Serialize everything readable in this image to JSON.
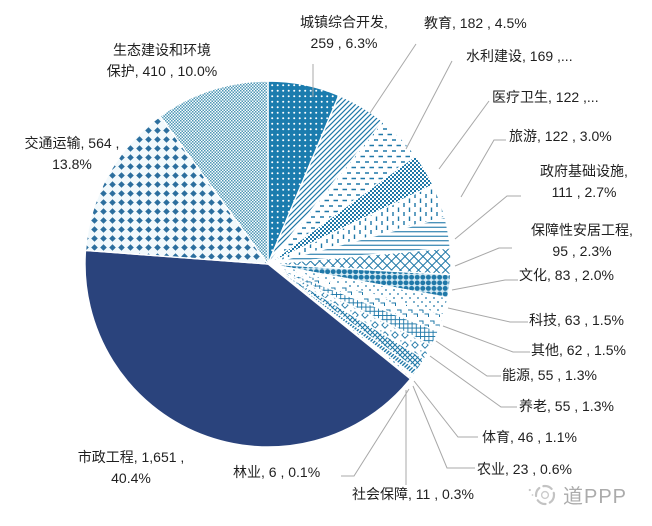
{
  "chart_data": {
    "type": "pie",
    "legend": false,
    "start_angle_deg": 0,
    "direction": "clockwise",
    "colors": {
      "navy": "#2A437C",
      "pattern_blue": "#1F78A8",
      "leader_line": "#A8A8A8",
      "label_text": "#1F1F1F"
    },
    "slices": [
      {
        "name": "城镇综合开发",
        "value": 259,
        "pct_shown": "6.3%",
        "label": "城镇综合开发,\n259 , 6.3%",
        "pattern": "dots-white-on-blue"
      },
      {
        "name": "教育",
        "value": 182,
        "pct_shown": "4.5%",
        "label": "教育, 182 , 4.5%",
        "pattern": "diag-stripes"
      },
      {
        "name": "水利建设",
        "value": 169,
        "pct_shown": "...",
        "label": "水利建设, 169 ,...",
        "pattern": "h-dashes"
      },
      {
        "name": "医疗卫生",
        "value": 122,
        "pct_shown": "...",
        "label": "医疗卫生, 122 ,...",
        "pattern": "dense-checker"
      },
      {
        "name": "旅游",
        "value": 122,
        "pct_shown": "3.0%",
        "label": "旅游, 122 , 3.0%",
        "pattern": "v-dashes"
      },
      {
        "name": "政府基础设施",
        "value": 111,
        "pct_shown": "2.7%",
        "label": "政府基础设施,\n111 , 2.7%",
        "pattern": "h-lines"
      },
      {
        "name": "保障性安居工程",
        "value": 95,
        "pct_shown": "2.3%",
        "label": "保障性安居工程,\n95 , 2.3%",
        "pattern": "diamond-lattice"
      },
      {
        "name": "文化",
        "value": 83,
        "pct_shown": "2.0%",
        "label": "文化, 83 , 2.0%",
        "pattern": "big-dots"
      },
      {
        "name": "科技",
        "value": 63,
        "pct_shown": "1.5%",
        "label": "科技, 63 , 1.5%",
        "pattern": "sparse-dots"
      },
      {
        "name": "其他",
        "value": 62,
        "pct_shown": "1.5%",
        "label": "其他, 62 , 1.5%",
        "pattern": "hooks"
      },
      {
        "name": "能源",
        "value": 55,
        "pct_shown": "1.3%",
        "label": "能源, 55 , 1.3%",
        "pattern": "grid"
      },
      {
        "name": "养老",
        "value": 55,
        "pct_shown": "1.3%",
        "label": "养老, 55 , 1.3%",
        "pattern": "sparse-diamonds"
      },
      {
        "name": "体育",
        "value": 46,
        "pct_shown": "1.1%",
        "label": "体育, 46 , 1.1%",
        "pattern": "diag-crosshatch"
      },
      {
        "name": "农业",
        "value": 23,
        "pct_shown": "0.6%",
        "label": "农业, 23 , 0.6%",
        "pattern": "diag-stripes-steep"
      },
      {
        "name": "社会保障",
        "value": 11,
        "pct_shown": "0.3%",
        "label": "社会保障, 11 , 0.3%",
        "pattern": "sparse-dots"
      },
      {
        "name": "林业",
        "value": 6,
        "pct_shown": "0.1%",
        "label": "林业, 6 , 0.1%",
        "pattern": "sparse-dots"
      },
      {
        "name": "市政工程",
        "value": 1651,
        "pct_shown": "40.4%",
        "label": "市政工程, 1,651 ,\n40.4%",
        "pattern": "solid-navy"
      },
      {
        "name": "交通运输",
        "value": 564,
        "pct_shown": "13.8%",
        "label": "交通运输, 564 ,\n13.8%",
        "pattern": "diamond-polka"
      },
      {
        "name": "生态建设和环境保护",
        "value": 410,
        "pct_shown": "10.0%",
        "label": "生态建设和环境\n保护, 410 , 10.0%",
        "pattern": "fine-checker"
      }
    ]
  },
  "watermark": {
    "text": "道PPP"
  }
}
